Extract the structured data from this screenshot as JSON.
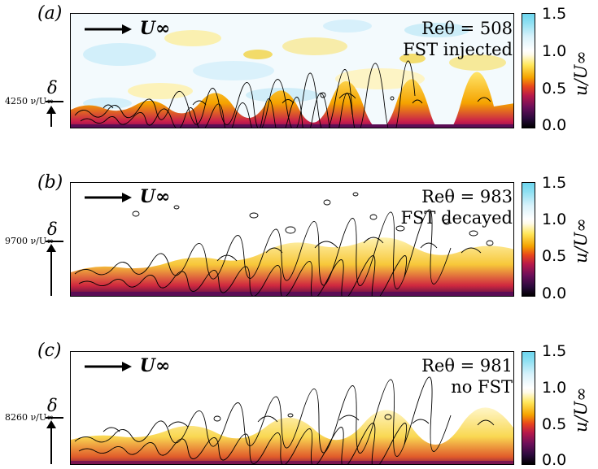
{
  "panels": [
    {
      "letter": "(a)",
      "free_stream_label": "U∞",
      "re_label": "Reθ = 508",
      "condition": "FST injected",
      "delta_symbol": "δ",
      "delta_value": "4250 ν/U∞",
      "colors": {
        "freestream_blobs_light": "#e4f4fb",
        "freestream_blobs_yellow": "#fdf3b8"
      }
    },
    {
      "letter": "(b)",
      "free_stream_label": "U∞",
      "re_label": "Reθ = 983",
      "condition": "FST decayed",
      "delta_symbol": "δ",
      "delta_value": "9700 ν/U∞"
    },
    {
      "letter": "(c)",
      "free_stream_label": "U∞",
      "re_label": "Reθ = 981",
      "condition": "no FST",
      "delta_symbol": "δ",
      "delta_value": "8260 ν/U∞"
    }
  ],
  "colorbar": {
    "label": "u/U∞",
    "ticks": [
      "1.5",
      "1.0",
      "0.5",
      "0.0"
    ],
    "range": [
      0.0,
      1.5
    ]
  }
}
